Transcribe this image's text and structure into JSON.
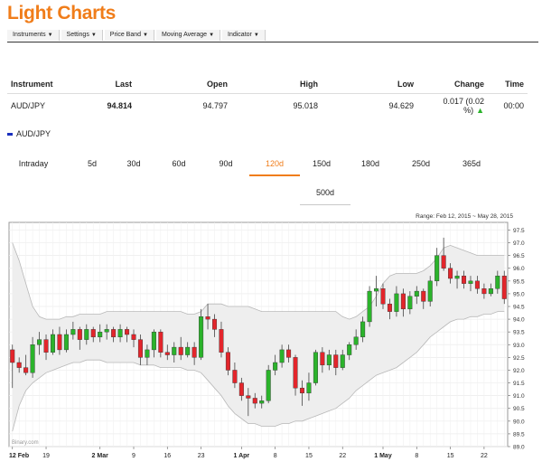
{
  "app": {
    "title": "Light Charts"
  },
  "menu": [
    {
      "label": "Instruments"
    },
    {
      "label": "Settings"
    },
    {
      "label": "Price Band"
    },
    {
      "label": "Moving Average"
    },
    {
      "label": "Indicator"
    }
  ],
  "quote_table": {
    "headers": {
      "instrument": "Instrument",
      "last": "Last",
      "open": "Open",
      "high": "High",
      "low": "Low",
      "change": "Change",
      "time": "Time"
    },
    "row": {
      "instrument": "AUD/JPY",
      "last": "94.814",
      "open": "94.797",
      "high": "95.018",
      "low": "94.629",
      "change": "0.017 (0.02 %)",
      "time": "00:00"
    },
    "change_icon": "up-triangle-icon"
  },
  "legend": {
    "label": "AUD/JPY",
    "color": "#1a2fbe"
  },
  "periods": [
    {
      "label": "Intraday"
    },
    {
      "label": "5d"
    },
    {
      "label": "30d"
    },
    {
      "label": "60d"
    },
    {
      "label": "90d"
    },
    {
      "label": "120d",
      "active": true
    },
    {
      "label": "150d"
    },
    {
      "label": "180d"
    },
    {
      "label": "250d"
    },
    {
      "label": "365d"
    },
    {
      "label": "500d"
    }
  ],
  "range_label": "Range: Feb 12, 2015 ~ May 28, 2015",
  "watermark": "Binary.com",
  "colors": {
    "accent": "#f07d1a",
    "up": "#2bb32b",
    "down": "#e3252b",
    "band": "#eeeeee"
  },
  "chart_data": {
    "type": "candlestick",
    "xlabel": "",
    "ylabel": "",
    "ylim": [
      89.0,
      97.8
    ],
    "yticks": [
      "97.5",
      "97.0",
      "96.5",
      "96.0",
      "95.5",
      "95.0",
      "94.5",
      "94.0",
      "93.5",
      "93.0",
      "92.5",
      "92.0",
      "91.5",
      "91.0",
      "90.5",
      "90.0",
      "89.5",
      "89.0"
    ],
    "xticks": [
      {
        "label": "12 Feb",
        "bold": true,
        "i": 0
      },
      {
        "label": "19",
        "i": 5
      },
      {
        "label": "2 Mar",
        "bold": true,
        "i": 13
      },
      {
        "label": "9",
        "i": 18
      },
      {
        "label": "16",
        "i": 23
      },
      {
        "label": "23",
        "i": 28
      },
      {
        "label": "1 Apr",
        "bold": true,
        "i": 34
      },
      {
        "label": "8",
        "i": 39
      },
      {
        "label": "15",
        "i": 44
      },
      {
        "label": "22",
        "i": 49
      },
      {
        "label": "1 May",
        "bold": true,
        "i": 55
      },
      {
        "label": "8",
        "i": 60
      },
      {
        "label": "15",
        "i": 65
      },
      {
        "label": "22",
        "i": 70
      }
    ],
    "candles": [
      {
        "o": 92.8,
        "h": 93.0,
        "l": 91.3,
        "c": 92.3
      },
      {
        "o": 92.3,
        "h": 92.5,
        "l": 91.9,
        "c": 92.1
      },
      {
        "o": 92.1,
        "h": 92.6,
        "l": 91.8,
        "c": 91.9
      },
      {
        "o": 91.9,
        "h": 93.3,
        "l": 91.7,
        "c": 93.0
      },
      {
        "o": 93.0,
        "h": 93.5,
        "l": 92.6,
        "c": 93.2
      },
      {
        "o": 93.2,
        "h": 93.4,
        "l": 92.4,
        "c": 92.7
      },
      {
        "o": 92.7,
        "h": 93.6,
        "l": 92.6,
        "c": 93.4
      },
      {
        "o": 93.4,
        "h": 93.7,
        "l": 92.6,
        "c": 92.8
      },
      {
        "o": 92.8,
        "h": 93.6,
        "l": 92.7,
        "c": 93.4
      },
      {
        "o": 93.4,
        "h": 93.9,
        "l": 93.2,
        "c": 93.6
      },
      {
        "o": 93.6,
        "h": 93.7,
        "l": 92.8,
        "c": 93.2
      },
      {
        "o": 93.2,
        "h": 93.8,
        "l": 93.0,
        "c": 93.6
      },
      {
        "o": 93.6,
        "h": 93.7,
        "l": 93.1,
        "c": 93.3
      },
      {
        "o": 93.3,
        "h": 93.8,
        "l": 93.1,
        "c": 93.5
      },
      {
        "o": 93.5,
        "h": 93.8,
        "l": 93.2,
        "c": 93.6
      },
      {
        "o": 93.6,
        "h": 93.7,
        "l": 93.1,
        "c": 93.3
      },
      {
        "o": 93.3,
        "h": 93.8,
        "l": 93.1,
        "c": 93.6
      },
      {
        "o": 93.6,
        "h": 93.7,
        "l": 93.1,
        "c": 93.4
      },
      {
        "o": 93.4,
        "h": 93.6,
        "l": 92.9,
        "c": 93.2
      },
      {
        "o": 93.2,
        "h": 93.4,
        "l": 92.2,
        "c": 92.5
      },
      {
        "o": 92.5,
        "h": 93.0,
        "l": 92.2,
        "c": 92.8
      },
      {
        "o": 92.8,
        "h": 93.6,
        "l": 92.5,
        "c": 93.5
      },
      {
        "o": 93.5,
        "h": 93.6,
        "l": 92.5,
        "c": 92.7
      },
      {
        "o": 92.7,
        "h": 93.0,
        "l": 92.4,
        "c": 92.6
      },
      {
        "o": 92.6,
        "h": 93.1,
        "l": 92.3,
        "c": 92.9
      },
      {
        "o": 92.9,
        "h": 93.3,
        "l": 92.4,
        "c": 92.6
      },
      {
        "o": 92.6,
        "h": 93.1,
        "l": 92.5,
        "c": 92.9
      },
      {
        "o": 92.9,
        "h": 93.1,
        "l": 92.2,
        "c": 92.5
      },
      {
        "o": 92.5,
        "h": 94.4,
        "l": 92.4,
        "c": 94.1
      },
      {
        "o": 94.1,
        "h": 94.6,
        "l": 93.6,
        "c": 94.0
      },
      {
        "o": 94.0,
        "h": 94.2,
        "l": 93.3,
        "c": 93.6
      },
      {
        "o": 93.6,
        "h": 93.9,
        "l": 92.5,
        "c": 92.7
      },
      {
        "o": 92.7,
        "h": 92.9,
        "l": 91.8,
        "c": 92.0
      },
      {
        "o": 92.0,
        "h": 92.3,
        "l": 91.3,
        "c": 91.5
      },
      {
        "o": 91.5,
        "h": 91.7,
        "l": 90.8,
        "c": 91.0
      },
      {
        "o": 91.0,
        "h": 91.3,
        "l": 90.2,
        "c": 90.9
      },
      {
        "o": 90.9,
        "h": 91.1,
        "l": 90.5,
        "c": 90.7
      },
      {
        "o": 90.7,
        "h": 91.0,
        "l": 90.5,
        "c": 90.8
      },
      {
        "o": 90.8,
        "h": 92.2,
        "l": 90.7,
        "c": 92.0
      },
      {
        "o": 92.0,
        "h": 92.6,
        "l": 91.8,
        "c": 92.3
      },
      {
        "o": 92.3,
        "h": 93.0,
        "l": 92.1,
        "c": 92.8
      },
      {
        "o": 92.8,
        "h": 93.0,
        "l": 92.3,
        "c": 92.5
      },
      {
        "o": 92.5,
        "h": 92.6,
        "l": 91.0,
        "c": 91.3
      },
      {
        "o": 91.3,
        "h": 91.6,
        "l": 90.6,
        "c": 91.1
      },
      {
        "o": 91.1,
        "h": 91.9,
        "l": 90.8,
        "c": 91.5
      },
      {
        "o": 91.5,
        "h": 92.8,
        "l": 91.4,
        "c": 92.7
      },
      {
        "o": 92.7,
        "h": 92.9,
        "l": 91.9,
        "c": 92.2
      },
      {
        "o": 92.2,
        "h": 92.8,
        "l": 92.0,
        "c": 92.6
      },
      {
        "o": 92.6,
        "h": 92.8,
        "l": 91.8,
        "c": 92.1
      },
      {
        "o": 92.1,
        "h": 92.8,
        "l": 92.0,
        "c": 92.6
      },
      {
        "o": 92.6,
        "h": 93.1,
        "l": 92.4,
        "c": 93.0
      },
      {
        "o": 93.0,
        "h": 93.6,
        "l": 92.8,
        "c": 93.3
      },
      {
        "o": 93.3,
        "h": 94.1,
        "l": 93.1,
        "c": 93.9
      },
      {
        "o": 93.9,
        "h": 95.3,
        "l": 93.7,
        "c": 95.1
      },
      {
        "o": 95.1,
        "h": 95.7,
        "l": 94.5,
        "c": 95.2
      },
      {
        "o": 95.2,
        "h": 95.4,
        "l": 94.4,
        "c": 94.6
      },
      {
        "o": 94.6,
        "h": 94.8,
        "l": 94.0,
        "c": 94.3
      },
      {
        "o": 94.3,
        "h": 95.3,
        "l": 94.1,
        "c": 95.0
      },
      {
        "o": 95.0,
        "h": 95.2,
        "l": 94.1,
        "c": 94.4
      },
      {
        "o": 94.4,
        "h": 95.1,
        "l": 94.2,
        "c": 94.9
      },
      {
        "o": 94.9,
        "h": 95.3,
        "l": 94.6,
        "c": 95.1
      },
      {
        "o": 95.1,
        "h": 95.2,
        "l": 94.4,
        "c": 94.7
      },
      {
        "o": 94.7,
        "h": 95.7,
        "l": 94.5,
        "c": 95.5
      },
      {
        "o": 95.5,
        "h": 96.8,
        "l": 95.3,
        "c": 96.5
      },
      {
        "o": 96.5,
        "h": 97.2,
        "l": 95.9,
        "c": 96.0
      },
      {
        "o": 96.0,
        "h": 96.2,
        "l": 95.4,
        "c": 95.6
      },
      {
        "o": 95.6,
        "h": 95.9,
        "l": 95.2,
        "c": 95.7
      },
      {
        "o": 95.7,
        "h": 95.9,
        "l": 95.2,
        "c": 95.4
      },
      {
        "o": 95.4,
        "h": 95.7,
        "l": 95.1,
        "c": 95.5
      },
      {
        "o": 95.5,
        "h": 95.7,
        "l": 95.0,
        "c": 95.2
      },
      {
        "o": 95.2,
        "h": 95.4,
        "l": 94.8,
        "c": 95.0
      },
      {
        "o": 95.0,
        "h": 95.4,
        "l": 94.9,
        "c": 95.2
      },
      {
        "o": 95.2,
        "h": 95.9,
        "l": 95.0,
        "c": 95.7
      },
      {
        "o": 95.7,
        "h": 95.9,
        "l": 94.6,
        "c": 94.8
      }
    ],
    "band_upper": [
      97.0,
      96.3,
      95.4,
      94.5,
      94.1,
      94.0,
      94.0,
      94.0,
      94.1,
      94.1,
      94.2,
      94.2,
      94.2,
      94.2,
      94.3,
      94.3,
      94.3,
      94.3,
      94.3,
      94.3,
      94.3,
      94.3,
      94.3,
      94.3,
      94.3,
      94.3,
      94.2,
      94.2,
      94.3,
      94.6,
      94.6,
      94.6,
      94.5,
      94.5,
      94.5,
      94.5,
      94.4,
      94.3,
      94.3,
      94.3,
      94.3,
      94.3,
      94.3,
      94.3,
      94.3,
      94.3,
      94.3,
      94.3,
      94.3,
      94.1,
      94.0,
      94.1,
      94.3,
      94.5,
      94.9,
      95.4,
      95.7,
      95.8,
      95.8,
      95.8,
      95.8,
      95.9,
      96.1,
      96.4,
      96.8,
      96.9,
      96.8,
      96.7,
      96.6,
      96.5,
      96.5,
      96.5,
      96.5,
      96.5
    ],
    "band_lower": [
      89.6,
      90.6,
      91.2,
      91.5,
      91.7,
      91.9,
      92.0,
      92.1,
      92.2,
      92.3,
      92.3,
      92.4,
      92.4,
      92.4,
      92.3,
      92.3,
      92.3,
      92.3,
      92.3,
      92.2,
      92.2,
      92.2,
      92.1,
      92.1,
      92.1,
      92.1,
      92.0,
      92.0,
      91.9,
      91.6,
      91.3,
      91.0,
      90.6,
      90.3,
      90.1,
      89.9,
      89.9,
      89.8,
      89.8,
      89.8,
      89.9,
      89.9,
      90.0,
      90.0,
      90.1,
      90.2,
      90.3,
      90.4,
      90.5,
      90.7,
      90.9,
      91.2,
      91.4,
      91.6,
      91.8,
      91.9,
      92.0,
      92.1,
      92.3,
      92.5,
      92.7,
      93.0,
      93.3,
      93.5,
      93.7,
      93.9,
      94.0,
      94.0,
      94.1,
      94.1,
      94.2,
      94.2,
      94.3,
      94.3
    ]
  }
}
